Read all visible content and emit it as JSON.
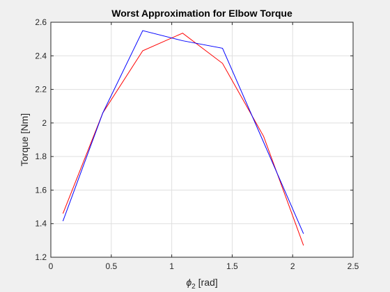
{
  "chart_data": {
    "type": "line",
    "title": "Worst Approximation for Elbow Torque",
    "xlabel_symbol": "ϕ",
    "xlabel_subscript": "2",
    "xlabel_unit": "[rad]",
    "ylabel": "Torque [Nm]",
    "xlim": [
      0,
      2.5
    ],
    "ylim": [
      1.2,
      2.6
    ],
    "xticks": [
      "0",
      "0.5",
      "1",
      "1.5",
      "2",
      "2.5"
    ],
    "xtick_values": [
      0,
      0.5,
      1,
      1.5,
      2,
      2.5
    ],
    "yticks": [
      "1.2",
      "1.4",
      "1.6",
      "1.8",
      "2",
      "2.2",
      "2.4",
      "2.6"
    ],
    "ytick_values": [
      1.2,
      1.4,
      1.6,
      1.8,
      2.0,
      2.2,
      2.4,
      2.6
    ],
    "grid": true,
    "series": [
      {
        "color": "#ff0000",
        "x": [
          0.1,
          0.43,
          0.76,
          1.09,
          1.42,
          1.76,
          2.09
        ],
        "y": [
          1.46,
          2.06,
          2.43,
          2.535,
          2.355,
          1.92,
          1.27
        ]
      },
      {
        "color": "#0000ff",
        "x": [
          0.1,
          0.43,
          0.76,
          1.09,
          1.42,
          1.76,
          2.09
        ],
        "y": [
          1.415,
          2.06,
          2.55,
          2.49,
          2.445,
          1.885,
          1.34
        ]
      }
    ]
  }
}
